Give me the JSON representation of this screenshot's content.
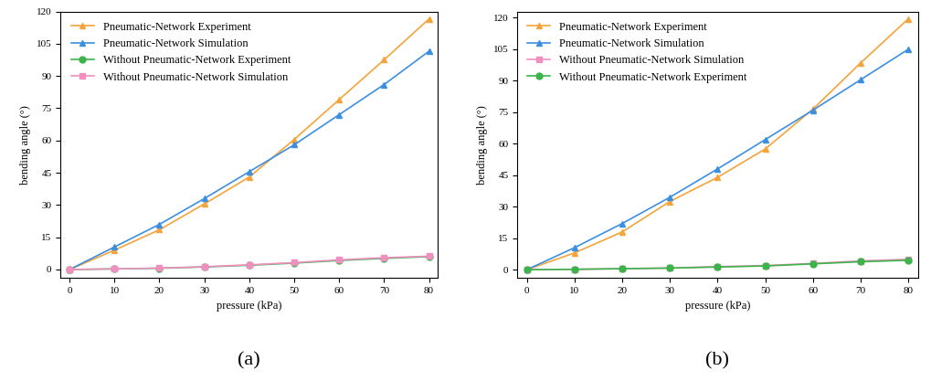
{
  "chart_data": [
    {
      "type": "line",
      "caption": "(a)",
      "x_label": "pressure (kPa)",
      "y_label": "bending angle (°)",
      "x": [
        0,
        10,
        20,
        30,
        40,
        50,
        60,
        70,
        80
      ],
      "xlim": [
        -2,
        82
      ],
      "xticks": [
        0,
        10,
        20,
        30,
        40,
        50,
        60,
        70,
        80
      ],
      "ylim": [
        -4,
        120
      ],
      "yticks": [
        0,
        15,
        30,
        45,
        60,
        75,
        90,
        105,
        120
      ],
      "legend": "upper left",
      "series": [
        {
          "name": "Pneumatic-Network Experiment",
          "color": "#f5a33b",
          "marker": "^",
          "line_style": "solid",
          "values": [
            0,
            9,
            18.5,
            30.5,
            43,
            60.5,
            79,
            97.5,
            116.5
          ]
        },
        {
          "name": "Pneumatic-Network Simulation",
          "color": "#3c8fe0",
          "marker": "^",
          "line_style": "solid",
          "values": [
            0,
            10.5,
            21,
            33,
            45.5,
            58,
            72,
            86,
            101.5
          ]
        },
        {
          "name": "Without Pneumatic-Network Experiment",
          "color": "#3cb44b",
          "marker": "o",
          "line_style": "solid",
          "values": [
            0,
            0.3,
            0.6,
            1.2,
            2,
            3,
            4.2,
            5.2,
            6
          ]
        },
        {
          "name": "Without Pneumatic-Network Simulation",
          "color": "#f08fc0",
          "marker": "s",
          "line_style": "solid",
          "values": [
            0,
            0.3,
            0.7,
            1.3,
            2.2,
            3.2,
            4.5,
            5.5,
            6.2
          ]
        }
      ]
    },
    {
      "type": "line",
      "caption": "(b)",
      "x_label": "pressure (kPa)",
      "y_label": "bending angle (°)",
      "x": [
        0,
        10,
        20,
        30,
        40,
        50,
        60,
        70,
        80
      ],
      "xlim": [
        -2,
        82
      ],
      "xticks": [
        0,
        10,
        20,
        30,
        40,
        50,
        60,
        70,
        80
      ],
      "ylim": [
        -4,
        123
      ],
      "yticks": [
        0,
        15,
        30,
        45,
        60,
        75,
        90,
        105,
        120
      ],
      "legend": "upper left",
      "series": [
        {
          "name": "Pneumatic-Network Experiment",
          "color": "#f5a33b",
          "marker": "^",
          "line_style": "solid",
          "values": [
            0,
            8,
            18,
            32.5,
            44,
            57.5,
            76.5,
            98.5,
            119.5
          ]
        },
        {
          "name": "Pneumatic-Network Simulation",
          "color": "#3c8fe0",
          "marker": "^",
          "line_style": "solid",
          "values": [
            0,
            10.5,
            22,
            34.5,
            48,
            62,
            76,
            90.5,
            105
          ]
        },
        {
          "name": "Without Pneumatic-Network Simulation",
          "color": "#f08fc0",
          "marker": "s",
          "line_style": "solid",
          "values": [
            0,
            0.2,
            0.5,
            0.8,
            1.5,
            2,
            3,
            4.2,
            5
          ]
        },
        {
          "name": "Without Pneumatic-Network Experiment",
          "color": "#3cb44b",
          "marker": "o",
          "line_style": "solid",
          "values": [
            0,
            0.2,
            0.5,
            0.8,
            1.3,
            1.8,
            2.8,
            3.8,
            4.5
          ]
        }
      ]
    }
  ]
}
